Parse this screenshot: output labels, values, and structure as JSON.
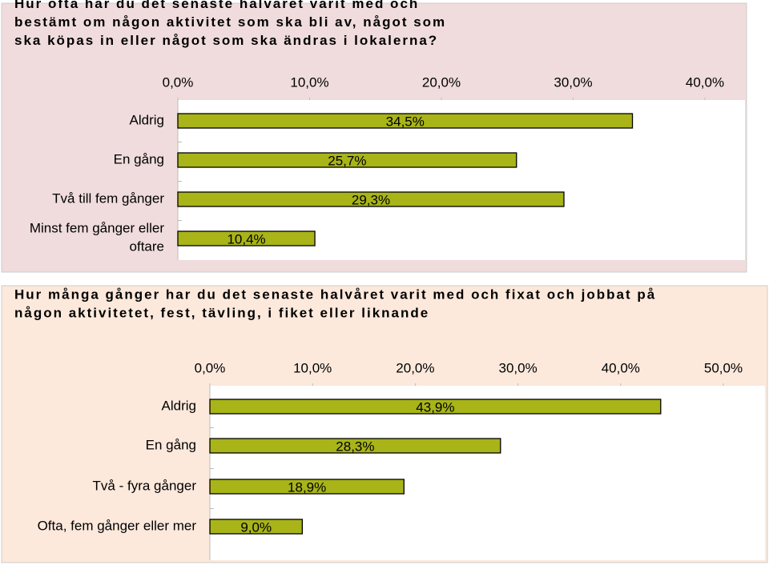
{
  "chart_data": [
    {
      "type": "bar",
      "orientation": "horizontal",
      "title": "Hur ofta har du det senaste halvåret varit med och bestämt om någon aktivitet som ska bli av, något som ska köpas in eller något som ska ändras i lokalerna?",
      "categories": [
        "Aldrig",
        "En gång",
        "Två till fem gånger",
        "Minst fem gånger eller oftare"
      ],
      "values": [
        34.5,
        25.7,
        29.3,
        10.4
      ],
      "value_labels": [
        "34,5%",
        "25,7%",
        "29,3%",
        "10,4%"
      ],
      "color": "#a8b418",
      "background": "#f0dcdc",
      "xlim": [
        0,
        40
      ],
      "xticks": [
        {
          "value": 0,
          "label": "0,0%"
        },
        {
          "value": 10,
          "label": "10,0%"
        },
        {
          "value": 20,
          "label": "20,0%"
        },
        {
          "value": 30,
          "label": "30,0%"
        },
        {
          "value": 40,
          "label": "40,0%"
        }
      ]
    },
    {
      "type": "bar",
      "orientation": "horizontal",
      "title": "Hur många gånger har du det senaste halvåret varit med och fixat och jobbat på någon aktivitetet, fest, tävling, i fiket eller liknande",
      "categories": [
        "Aldrig",
        "En gång",
        "Två - fyra gånger",
        "Ofta, fem gånger eller mer"
      ],
      "values": [
        43.9,
        28.3,
        18.9,
        9.0
      ],
      "value_labels": [
        "43,9%",
        "28,3%",
        "18,9%",
        "9,0%"
      ],
      "color": "#a8b418",
      "background": "#fce9dc",
      "xlim": [
        0,
        50
      ],
      "xticks": [
        {
          "value": 0,
          "label": "0,0%"
        },
        {
          "value": 10,
          "label": "10,0%"
        },
        {
          "value": 20,
          "label": "20,0%"
        },
        {
          "value": 30,
          "label": "30,0%"
        },
        {
          "value": 40,
          "label": "40,0%"
        },
        {
          "value": 50,
          "label": "50,0%"
        }
      ]
    }
  ]
}
